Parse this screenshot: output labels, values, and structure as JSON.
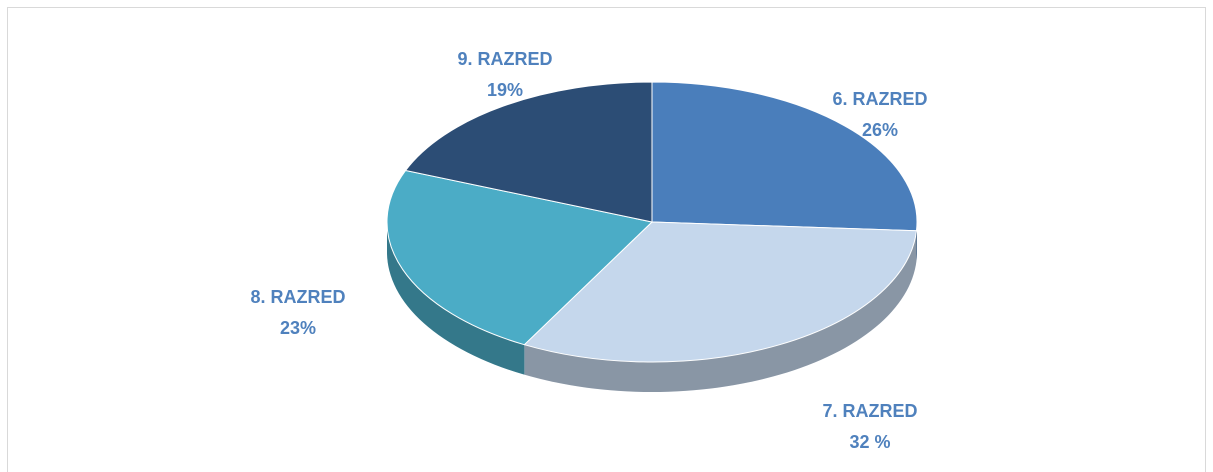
{
  "chart_data": {
    "type": "pie",
    "categories": [
      "6. RAZRED",
      "7. RAZRED",
      "8. RAZRED",
      "9. RAZRED"
    ],
    "values": [
      26,
      32,
      23,
      19
    ],
    "value_labels": [
      "26%",
      "32 %",
      "23%",
      "19%"
    ],
    "colors": [
      "#4a7ebb",
      "#c5d7ec",
      "#4bacc6",
      "#2c4d75"
    ],
    "label_color": "#4f81bd"
  }
}
